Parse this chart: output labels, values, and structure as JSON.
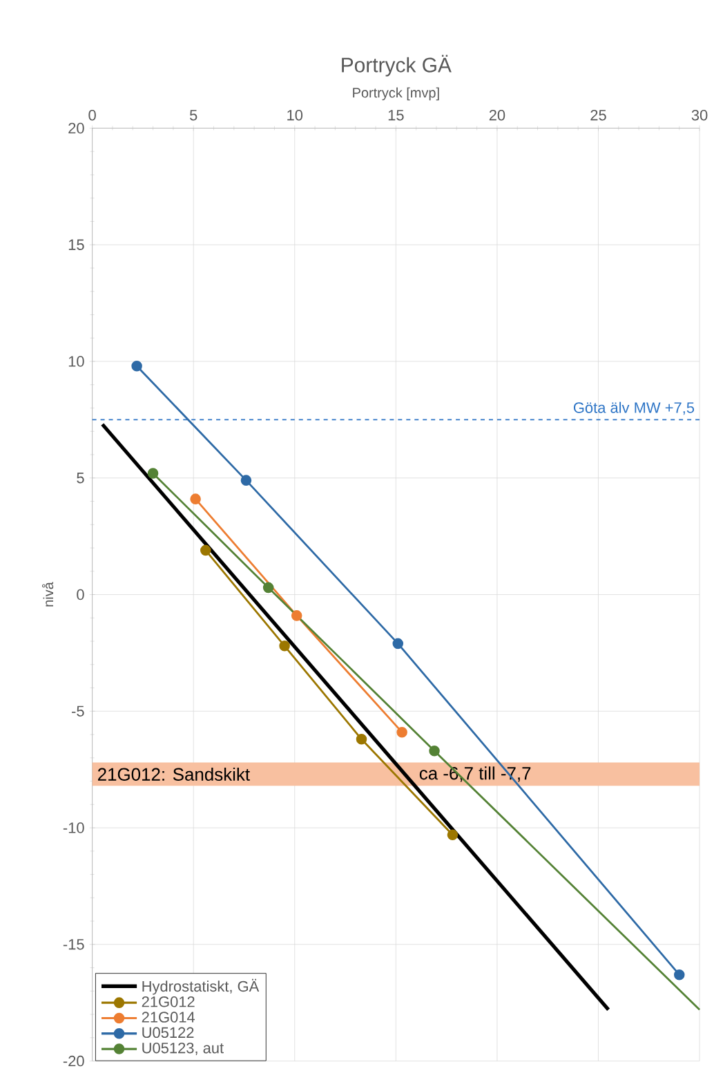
{
  "chart_data": {
    "type": "line",
    "title": "Portryck GÄ",
    "xlabel": "Portryck [mvp]",
    "ylabel": "nivå",
    "xlim": [
      0,
      30
    ],
    "xticks": [
      0,
      5,
      10,
      15,
      20,
      25,
      30
    ],
    "ylim": [
      -20,
      20
    ],
    "yticks": [
      -20,
      -15,
      -10,
      -5,
      0,
      5,
      10,
      15,
      20
    ],
    "grid": true,
    "legend": "bottom left",
    "marker": "circle",
    "line_style": "solid",
    "series": [
      {
        "name": "Hydrostatiskt, GÄ",
        "color": "#000000",
        "marker": "none",
        "x": [
          0.5,
          25.5
        ],
        "values": [
          7.3,
          -17.8
        ]
      },
      {
        "name": "21G012",
        "color": "#9c7700",
        "x": [
          5.6,
          9.5,
          13.3,
          17.8
        ],
        "values": [
          1.9,
          -2.2,
          -6.2,
          -10.3
        ]
      },
      {
        "name": "21G014",
        "color": "#ed7d31",
        "x": [
          5.1,
          10.1,
          15.3
        ],
        "values": [
          4.1,
          -0.9,
          -5.9
        ]
      },
      {
        "name": "U05122",
        "color": "#2e6aa6",
        "x": [
          2.2,
          7.6,
          15.1,
          29.0
        ],
        "values": [
          9.8,
          4.9,
          -2.1,
          -16.3
        ]
      },
      {
        "name": "U05123, aut",
        "color": "#548235",
        "x": [
          3.0,
          8.7,
          16.9
        ],
        "values": [
          5.2,
          0.3,
          -6.7
        ]
      },
      {
        "color": "#548235",
        "marker": "none",
        "x": [
          16.9,
          30
        ],
        "values": [
          -6.7,
          -17.8
        ]
      }
    ],
    "ref_lines": [
      {
        "axis": "y",
        "value": 7.5,
        "label": "Göta älv MW +7,5",
        "color": "#2e75c6",
        "line_style": "dashed"
      }
    ],
    "bands": [
      {
        "axis": "y",
        "from": -7.2,
        "to": -8.2,
        "label": "21G012: Sandskikt",
        "color": "#f8c0a0"
      }
    ],
    "annotations": [
      "ca -6,7 till -7,7"
    ]
  }
}
